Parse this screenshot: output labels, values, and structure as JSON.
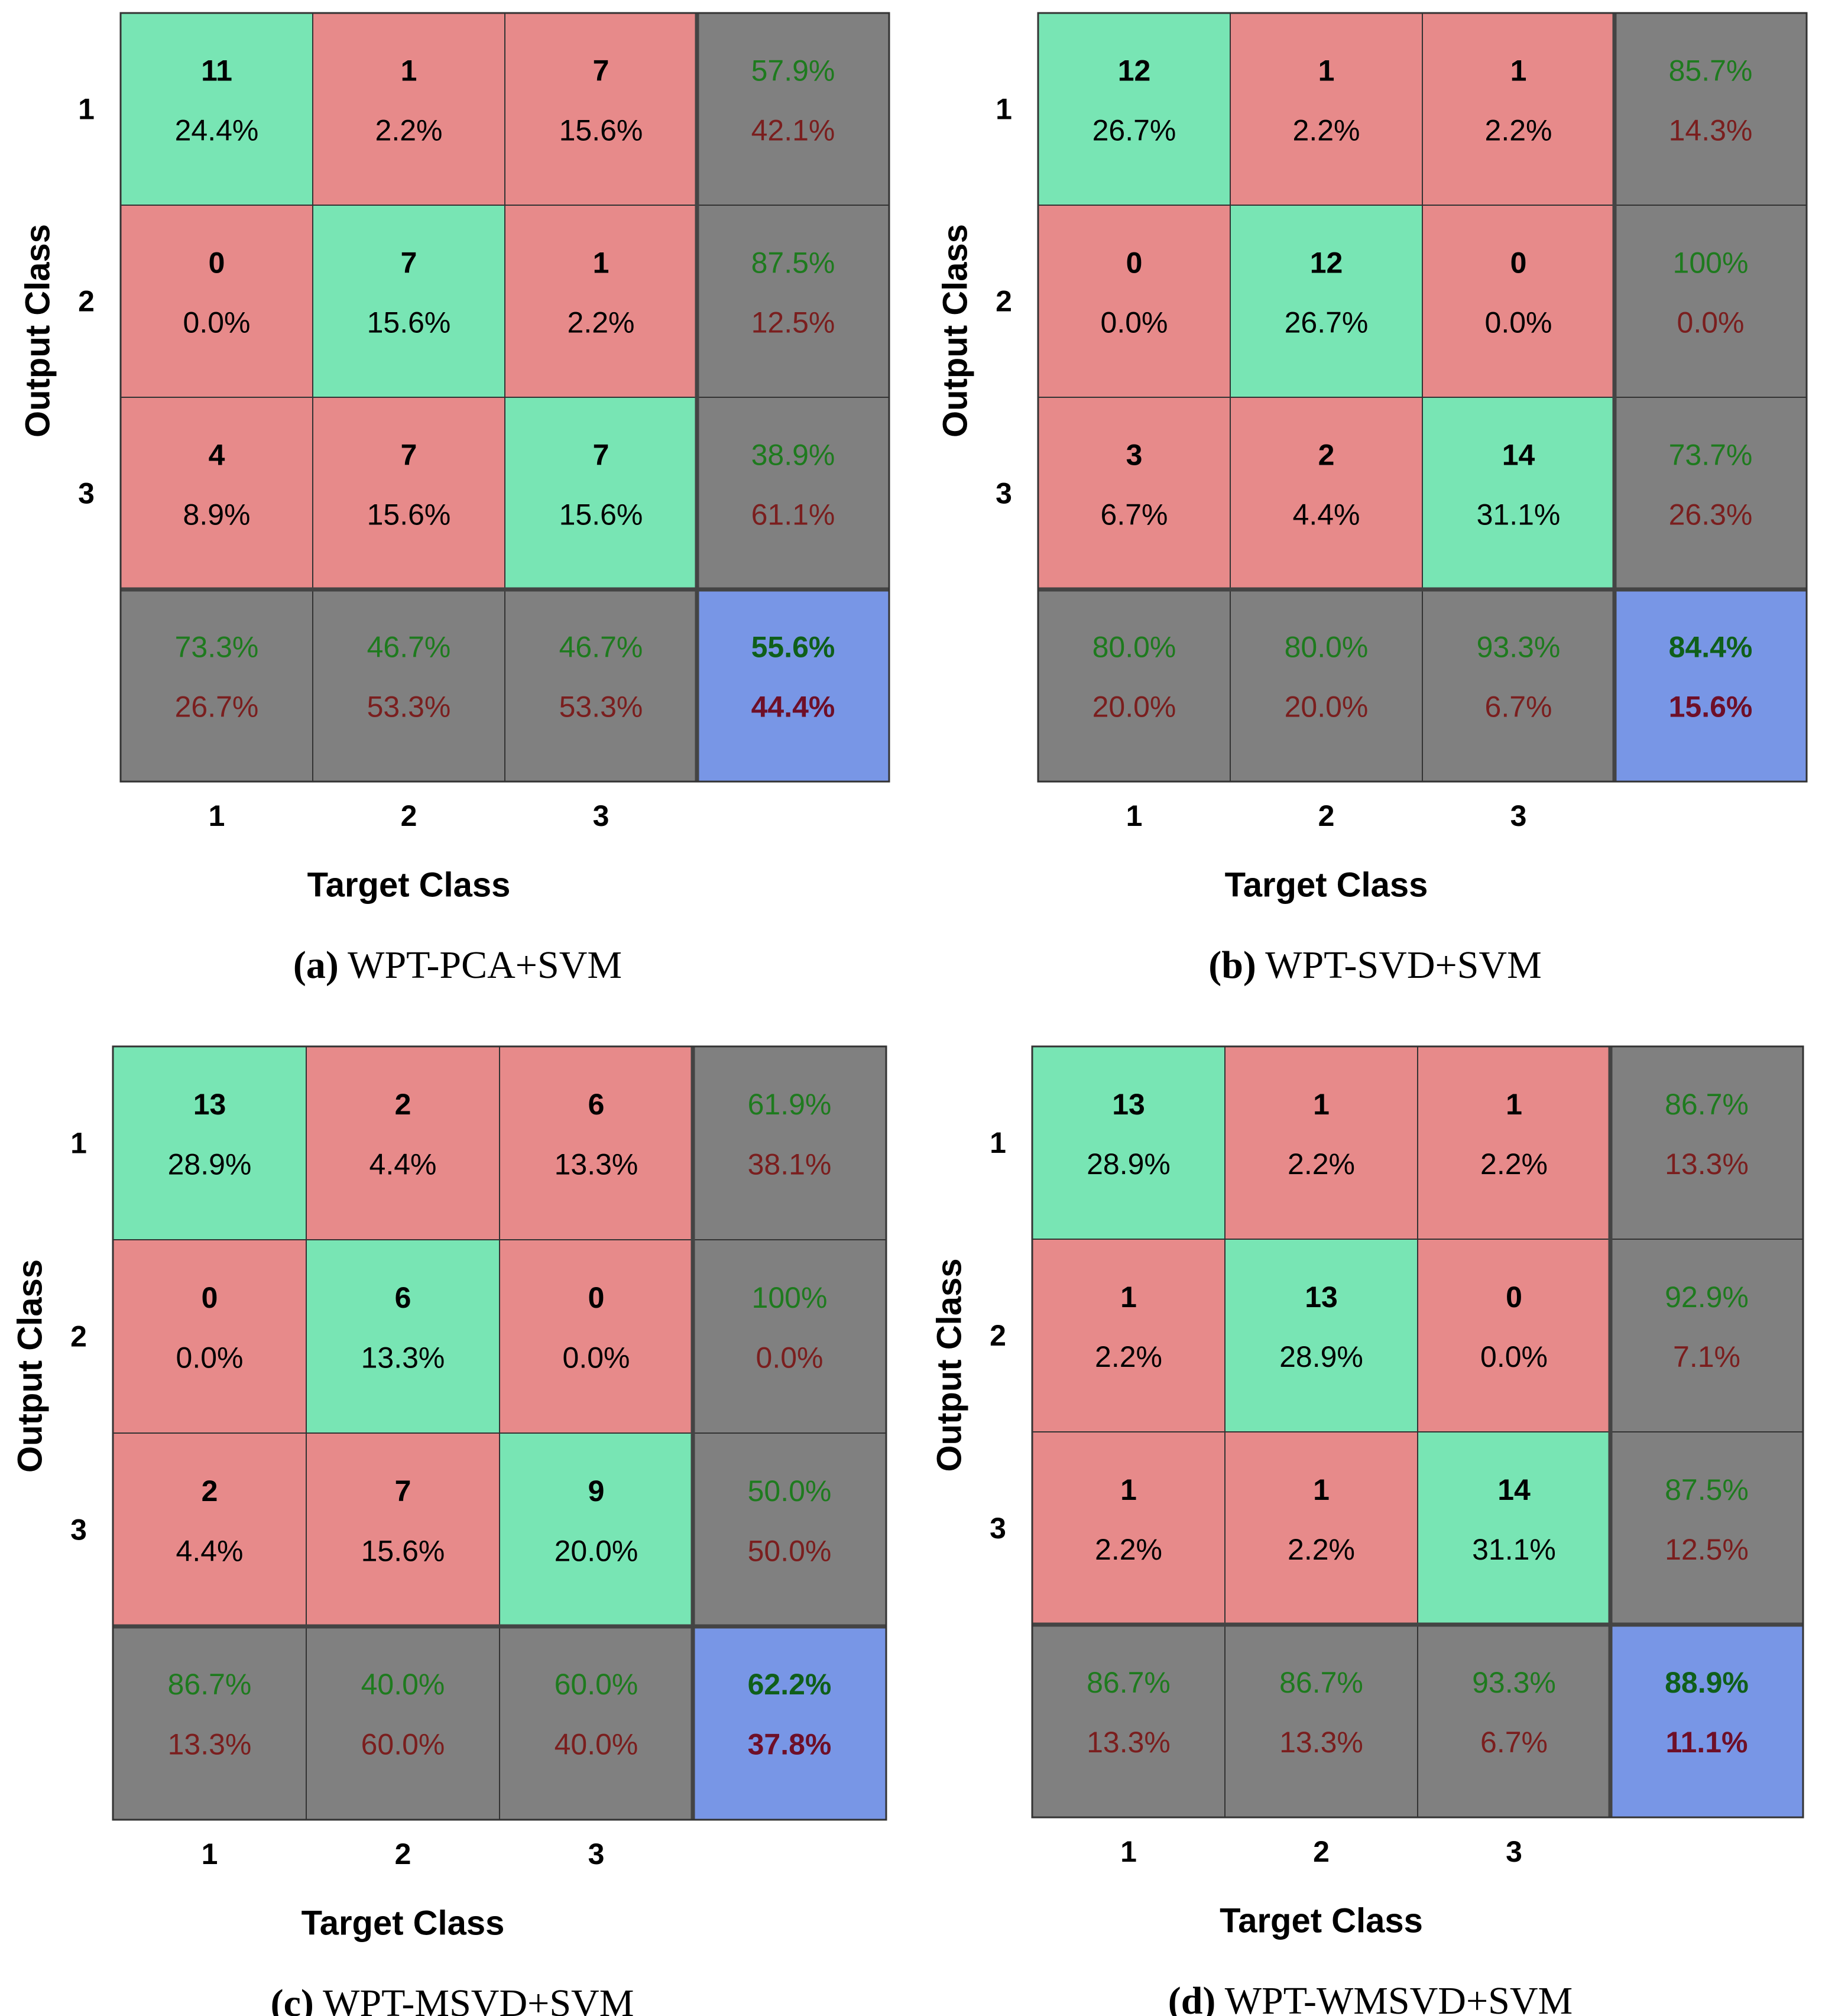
{
  "colors": {
    "diag": "#78E5B4",
    "offdiag": "#E78A8A",
    "summary": "#808080",
    "total": "#7896E6",
    "good_text": "#1E7A1E",
    "bad_text": "#7A1E1E",
    "good_text_bold": "#0F5F1A",
    "bad_text_bold": "#6E0F28",
    "grid_line": "#333333"
  },
  "chart_data": [
    {
      "type": "heatmap",
      "panel_label": "(a)",
      "caption": "WPT-PCA+SVM",
      "xlabel": "Target Class",
      "ylabel": "Output Class",
      "x_ticks": [
        "1",
        "2",
        "3"
      ],
      "y_ticks": [
        "1",
        "2",
        "3"
      ],
      "counts": [
        [
          11,
          1,
          7
        ],
        [
          0,
          7,
          1
        ],
        [
          4,
          7,
          7
        ]
      ],
      "percents": [
        [
          "24.4%",
          "2.2%",
          "15.6%"
        ],
        [
          "0.0%",
          "15.6%",
          "2.2%"
        ],
        [
          "8.9%",
          "15.6%",
          "15.6%"
        ]
      ],
      "row_summary": [
        [
          "57.9%",
          "42.1%"
        ],
        [
          "87.5%",
          "12.5%"
        ],
        [
          "38.9%",
          "61.1%"
        ]
      ],
      "col_summary": [
        [
          "73.3%",
          "26.7%"
        ],
        [
          "46.7%",
          "53.3%"
        ],
        [
          "46.7%",
          "53.3%"
        ]
      ],
      "overall": [
        "55.6%",
        "44.4%"
      ]
    },
    {
      "type": "heatmap",
      "panel_label": "(b)",
      "caption": "WPT-SVD+SVM",
      "xlabel": "Target Class",
      "ylabel": "Output Class",
      "x_ticks": [
        "1",
        "2",
        "3"
      ],
      "y_ticks": [
        "1",
        "2",
        "3"
      ],
      "counts": [
        [
          12,
          1,
          1
        ],
        [
          0,
          12,
          0
        ],
        [
          3,
          2,
          14
        ]
      ],
      "percents": [
        [
          "26.7%",
          "2.2%",
          "2.2%"
        ],
        [
          "0.0%",
          "26.7%",
          "0.0%"
        ],
        [
          "6.7%",
          "4.4%",
          "31.1%"
        ]
      ],
      "row_summary": [
        [
          "85.7%",
          "14.3%"
        ],
        [
          "100%",
          "0.0%"
        ],
        [
          "73.7%",
          "26.3%"
        ]
      ],
      "col_summary": [
        [
          "80.0%",
          "20.0%"
        ],
        [
          "80.0%",
          "20.0%"
        ],
        [
          "93.3%",
          "6.7%"
        ]
      ],
      "overall": [
        "84.4%",
        "15.6%"
      ]
    },
    {
      "type": "heatmap",
      "panel_label": "(c)",
      "caption": "WPT-MSVD+SVM",
      "xlabel": "Target Class",
      "ylabel": "Output Class",
      "x_ticks": [
        "1",
        "2",
        "3"
      ],
      "y_ticks": [
        "1",
        "2",
        "3"
      ],
      "counts": [
        [
          13,
          2,
          6
        ],
        [
          0,
          6,
          0
        ],
        [
          2,
          7,
          9
        ]
      ],
      "percents": [
        [
          "28.9%",
          "4.4%",
          "13.3%"
        ],
        [
          "0.0%",
          "13.3%",
          "0.0%"
        ],
        [
          "4.4%",
          "15.6%",
          "20.0%"
        ]
      ],
      "row_summary": [
        [
          "61.9%",
          "38.1%"
        ],
        [
          "100%",
          "0.0%"
        ],
        [
          "50.0%",
          "50.0%"
        ]
      ],
      "col_summary": [
        [
          "86.7%",
          "13.3%"
        ],
        [
          "40.0%",
          "60.0%"
        ],
        [
          "60.0%",
          "40.0%"
        ]
      ],
      "overall": [
        "62.2%",
        "37.8%"
      ]
    },
    {
      "type": "heatmap",
      "panel_label": "(d)",
      "caption": "WPT-WMSVD+SVM",
      "xlabel": "Target Class",
      "ylabel": "Output Class",
      "x_ticks": [
        "1",
        "2",
        "3"
      ],
      "y_ticks": [
        "1",
        "2",
        "3"
      ],
      "counts": [
        [
          13,
          1,
          1
        ],
        [
          1,
          13,
          0
        ],
        [
          1,
          1,
          14
        ]
      ],
      "percents": [
        [
          "28.9%",
          "2.2%",
          "2.2%"
        ],
        [
          "2.2%",
          "28.9%",
          "0.0%"
        ],
        [
          "2.2%",
          "2.2%",
          "31.1%"
        ]
      ],
      "row_summary": [
        [
          "86.7%",
          "13.3%"
        ],
        [
          "92.9%",
          "7.1%"
        ],
        [
          "87.5%",
          "12.5%"
        ]
      ],
      "col_summary": [
        [
          "86.7%",
          "13.3%"
        ],
        [
          "86.7%",
          "13.3%"
        ],
        [
          "93.3%",
          "6.7%"
        ]
      ],
      "overall": [
        "88.9%",
        "11.1%"
      ]
    }
  ]
}
